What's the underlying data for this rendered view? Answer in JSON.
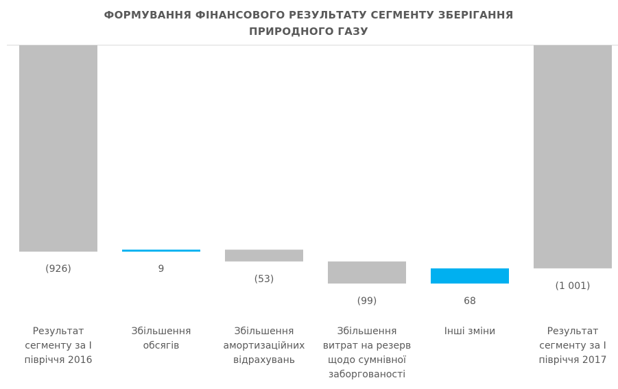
{
  "chart_data": {
    "type": "waterfall",
    "title": "ФОРМУВАННЯ  ФІНАНСОВОГО РЕЗУЛЬТАТУ СЕГМЕНТУ ЗБЕРІГАННЯ ПРИРОДНОГО ГАЗУ",
    "categories": [
      "Результат сегменту за І півріччя 2016",
      "Збільшення обсягів",
      "Збільшення амортизаційних відрахувань",
      "Збільшення витрат на резерв щодо сумнівної заборгованості",
      "Інші зміни",
      "Результат сегменту за І півріччя 2017"
    ],
    "values": [
      -926,
      9,
      -53,
      -99,
      68,
      -1001
    ],
    "value_labels": [
      "(926)",
      "9",
      "(53)",
      "(99)",
      "68",
      "(1 001)"
    ],
    "totals": [
      0,
      5
    ],
    "color_increase": "#00b0f0",
    "color_decrease": "#bfbfbf",
    "color_total": "#bfbfbf"
  }
}
